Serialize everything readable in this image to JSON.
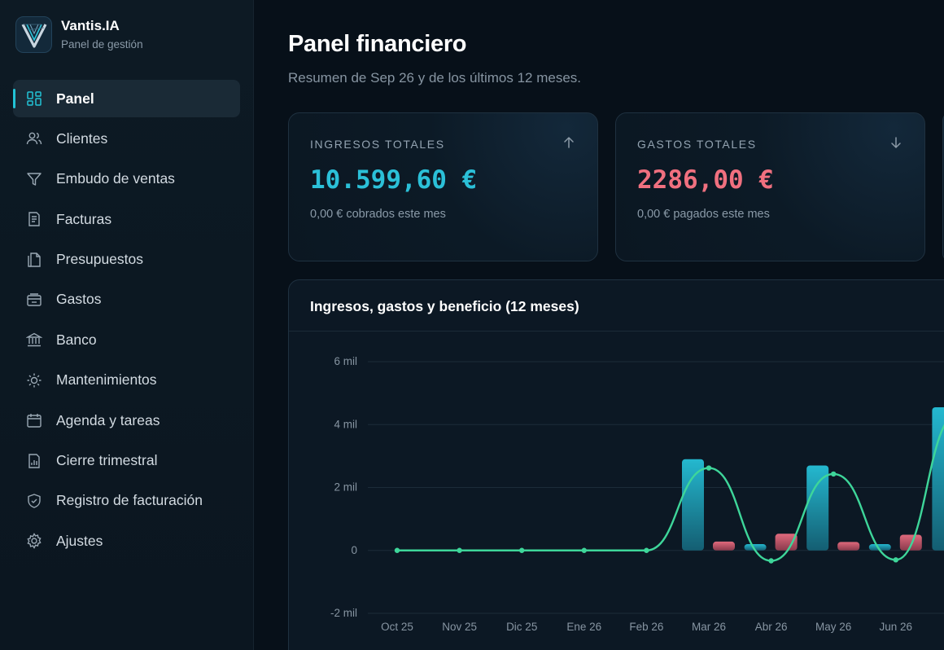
{
  "brand": {
    "title": "Vantis.IA",
    "subtitle": "Panel de gestión",
    "logo_icon": "vantis-v-logo"
  },
  "sidebar": {
    "items": [
      {
        "label": "Panel",
        "icon": "dashboard-icon",
        "active": true
      },
      {
        "label": "Clientes",
        "icon": "users-icon"
      },
      {
        "label": "Embudo de ventas",
        "icon": "funnel-icon"
      },
      {
        "label": "Facturas",
        "icon": "invoice-icon"
      },
      {
        "label": "Presupuestos",
        "icon": "documents-icon"
      },
      {
        "label": "Gastos",
        "icon": "wallet-icon"
      },
      {
        "label": "Banco",
        "icon": "bank-icon"
      },
      {
        "label": "Mantenimientos",
        "icon": "sun-icon"
      },
      {
        "label": "Agenda y tareas",
        "icon": "calendar-icon"
      },
      {
        "label": "Cierre trimestral",
        "icon": "report-icon"
      },
      {
        "label": "Registro de facturación",
        "icon": "shield-icon"
      },
      {
        "label": "Ajustes",
        "icon": "gear-icon"
      }
    ]
  },
  "header": {
    "title": "Panel financiero",
    "subtitle": "Resumen de Sep 26 y de los últimos 12 meses."
  },
  "cards": [
    {
      "label": "INGRESOS TOTALES",
      "value": "10.599,60 €",
      "note": "0,00 € cobrados este mes",
      "icon": "arrow-up-icon",
      "color": "#2bc0d8"
    },
    {
      "label": "GASTOS TOTALES",
      "value": "2286,00 €",
      "note": "0,00 € pagados este mes",
      "icon": "arrow-down-icon",
      "color": "#f0707f"
    }
  ],
  "colors": {
    "income": "#22b4cc",
    "expense": "#e0657a",
    "profit": "#3ed69a",
    "accent": "#22c3d6"
  },
  "chart": {
    "title": "Ingresos, gastos y beneficio (12 meses)"
  },
  "chart_data": {
    "type": "bar",
    "title": "Ingresos, gastos y beneficio (12 meses)",
    "categories": [
      "Oct 25",
      "Nov 25",
      "Dic 25",
      "Ene 26",
      "Feb 26",
      "Mar 26",
      "Abr 26",
      "May 26",
      "Jun 26"
    ],
    "series": [
      {
        "values": [
          0,
          0,
          0,
          0,
          0,
          2900,
          200,
          2700,
          200
        ]
      },
      {
        "values": [
          0,
          0,
          0,
          0,
          0,
          280,
          530,
          270,
          500
        ]
      },
      {
        "values": [
          0,
          0,
          0,
          0,
          0,
          2620,
          -330,
          2430,
          -300
        ]
      }
    ],
    "partial_next": {
      "income": 4550
    },
    "yticks": [
      "-2 mil",
      "0",
      "2 mil",
      "4 mil",
      "6 mil"
    ],
    "ytick_values": [
      -2000,
      0,
      2000,
      4000,
      6000
    ],
    "ylim": [
      -2000,
      6000
    ],
    "grid": true
  }
}
